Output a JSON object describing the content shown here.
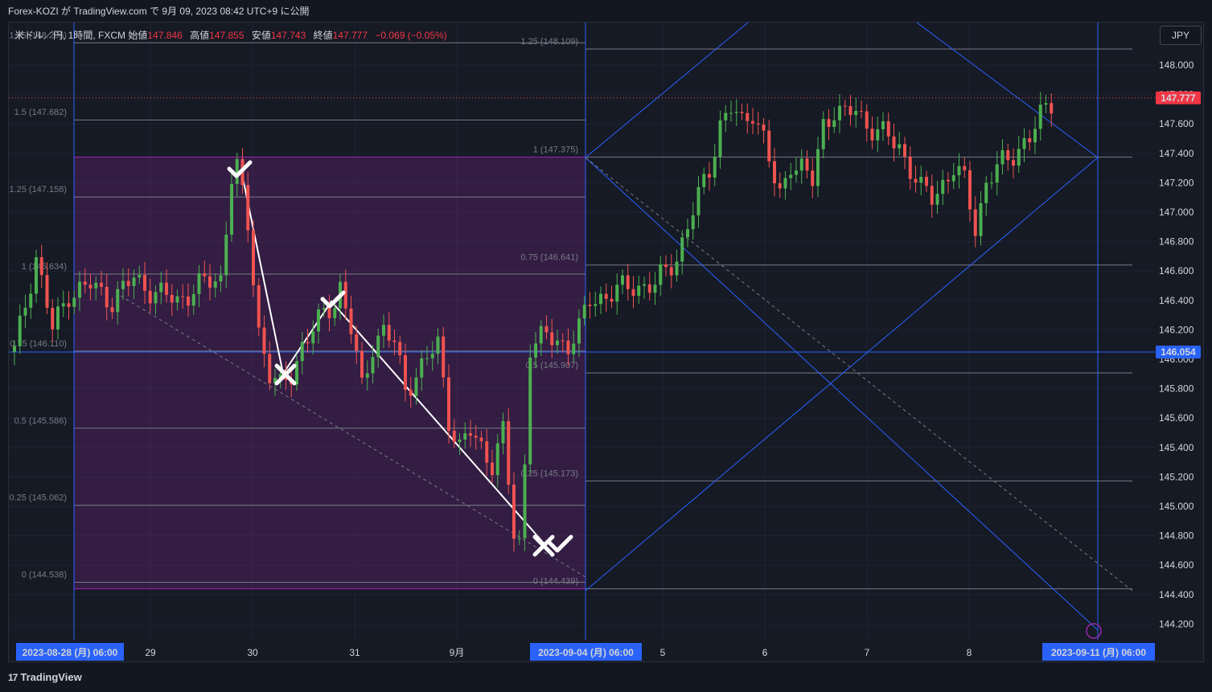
{
  "publisher_line": "Forex-KOZI が TradingView.com で 9月 09, 2023 08:42 UTC+9 に公開",
  "legend": {
    "symbol": "米ドル／円, 1時間, FXCM",
    "open_label": "始値",
    "open": "147.846",
    "high_label": "高値",
    "high": "147.855",
    "low_label": "安値",
    "low": "147.743",
    "close_label": "終値",
    "close": "147.777",
    "change": "−0.069 (−0.05%)"
  },
  "currency_button": "JPY",
  "footer_brand": "TradingView",
  "colors": {
    "up": "#26a69a",
    "up_bright": "#4caf50",
    "down": "#ef5350",
    "blue": "#2962ff",
    "fib_zone": "#9c27b0",
    "fib_line": "#787b86"
  },
  "chart_data": {
    "type": "line",
    "symbol": "USDJPY",
    "timeframe": "1H",
    "ylim": [
      144.1,
      148.4
    ],
    "price_ticks": [
      "148.000",
      "147.800",
      "147.600",
      "147.400",
      "147.200",
      "147.000",
      "146.800",
      "146.600",
      "146.400",
      "146.200",
      "146.000",
      "145.800",
      "145.600",
      "145.400",
      "145.200",
      "145.000",
      "144.800",
      "144.600",
      "144.400",
      "144.200"
    ],
    "last_price": "147.777",
    "crosshair_price": "146.054",
    "time_ticks": [
      {
        "label": "29",
        "x": 187
      },
      {
        "label": "30",
        "x": 314
      },
      {
        "label": "31",
        "x": 441
      },
      {
        "label": "9月",
        "x": 568
      },
      {
        "label": "5",
        "x": 824
      },
      {
        "label": "6",
        "x": 951
      },
      {
        "label": "7",
        "x": 1078
      },
      {
        "label": "8",
        "x": 1205
      }
    ],
    "time_markers": [
      {
        "date": "2023-08-28 (月)",
        "time": "06:00"
      },
      {
        "date": "2023-09-04 (月)",
        "time": "06:00"
      },
      {
        "date": "2023-09-11 (月)",
        "time": "06:00"
      }
    ],
    "fib_left": [
      {
        "level": "1.75",
        "price": "148.206"
      },
      {
        "level": "1.5",
        "price": "147.682"
      },
      {
        "level": "1.25",
        "price": "147.158"
      },
      {
        "level": "1",
        "price": "146.634"
      },
      {
        "level": "0.75",
        "price": "146.110"
      },
      {
        "level": "0.5",
        "price": "145.586"
      },
      {
        "level": "0.25",
        "price": "145.062"
      },
      {
        "level": "0",
        "price": "144.538"
      }
    ],
    "fib_right": [
      {
        "level": "1.25",
        "price": "148.109"
      },
      {
        "level": "1",
        "price": "147.375"
      },
      {
        "level": "0.75",
        "price": "146.641"
      },
      {
        "level": "0.5",
        "price": "145.907"
      },
      {
        "level": "0.25",
        "price": "145.173"
      },
      {
        "level": "0",
        "price": "144.439"
      }
    ],
    "price_path": [
      [
        0,
        146.05
      ],
      [
        4,
        146.7
      ],
      [
        7,
        146.2
      ],
      [
        10,
        146.45
      ],
      [
        14,
        146.5
      ],
      [
        18,
        146.4
      ],
      [
        22,
        146.55
      ],
      [
        26,
        146.45
      ],
      [
        30,
        146.4
      ],
      [
        34,
        146.5
      ],
      [
        38,
        146.55
      ],
      [
        40,
        147.25
      ],
      [
        41,
        147.3
      ],
      [
        43,
        146.9
      ],
      [
        45,
        146.2
      ],
      [
        47,
        145.9
      ],
      [
        49,
        145.8
      ],
      [
        51,
        145.9
      ],
      [
        53,
        146.1
      ],
      [
        55,
        146.2
      ],
      [
        57,
        146.3
      ],
      [
        59,
        146.4
      ],
      [
        60,
        146.5
      ],
      [
        62,
        146.2
      ],
      [
        64,
        145.8
      ],
      [
        66,
        146.1
      ],
      [
        68,
        146.2
      ],
      [
        70,
        146.1
      ],
      [
        72,
        145.8
      ],
      [
        74,
        145.9
      ],
      [
        76,
        146.0
      ],
      [
        78,
        146.1
      ],
      [
        80,
        145.6
      ],
      [
        82,
        145.4
      ],
      [
        84,
        145.5
      ],
      [
        86,
        145.4
      ],
      [
        88,
        145.3
      ],
      [
        90,
        145.5
      ],
      [
        92,
        144.8
      ],
      [
        93,
        144.75
      ],
      [
        94,
        145.3
      ],
      [
        95,
        146.1
      ],
      [
        98,
        146.15
      ],
      [
        102,
        146.1
      ],
      [
        104,
        146.2
      ],
      [
        106,
        146.4
      ],
      [
        110,
        146.45
      ],
      [
        114,
        146.5
      ],
      [
        118,
        146.5
      ],
      [
        122,
        146.7
      ],
      [
        124,
        146.9
      ],
      [
        126,
        147.1
      ],
      [
        128,
        147.3
      ],
      [
        130,
        147.6
      ],
      [
        132,
        147.7
      ],
      [
        134,
        147.6
      ],
      [
        136,
        147.7
      ],
      [
        138,
        147.5
      ],
      [
        140,
        147.2
      ],
      [
        141,
        147.1
      ],
      [
        143,
        147.35
      ],
      [
        145,
        147.3
      ],
      [
        147,
        147.2
      ],
      [
        149,
        147.6
      ],
      [
        151,
        147.7
      ],
      [
        153,
        147.65
      ],
      [
        155,
        147.7
      ],
      [
        157,
        147.6
      ],
      [
        159,
        147.55
      ],
      [
        161,
        147.5
      ],
      [
        163,
        147.45
      ],
      [
        165,
        147.3
      ],
      [
        167,
        147.15
      ],
      [
        169,
        147.1
      ],
      [
        171,
        147.2
      ],
      [
        173,
        147.3
      ],
      [
        175,
        147.2
      ],
      [
        177,
        146.9
      ],
      [
        179,
        147.2
      ],
      [
        181,
        147.3
      ],
      [
        183,
        147.35
      ],
      [
        185,
        147.45
      ],
      [
        187,
        147.5
      ],
      [
        189,
        147.65
      ],
      [
        191,
        147.75
      ],
      [
        192,
        147.78
      ]
    ]
  }
}
